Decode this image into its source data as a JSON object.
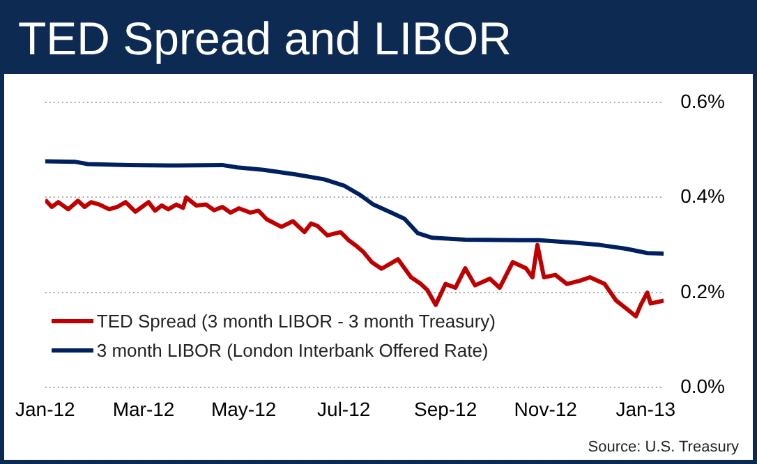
{
  "chart_data": {
    "type": "line",
    "title": "TED Spread and LIBOR",
    "annotations": [
      "Source: U.S. Treasury"
    ],
    "series": [
      {
        "name": "TED Spread (3 month LIBOR - 3 month Treasury)",
        "color": "#c00000",
        "x": [
          "2012-01-01",
          "2012-01-05",
          "2012-01-09",
          "2012-01-15",
          "2012-01-21",
          "2012-01-25",
          "2012-01-29",
          "2012-02-03",
          "2012-02-09",
          "2012-02-14",
          "2012-02-19",
          "2012-02-25",
          "2012-02-29",
          "2012-03-04",
          "2012-03-08",
          "2012-03-12",
          "2012-03-16",
          "2012-03-21",
          "2012-03-25",
          "2012-03-27",
          "2012-04-02",
          "2012-04-08",
          "2012-04-13",
          "2012-04-18",
          "2012-04-23",
          "2012-04-28",
          "2012-05-05",
          "2012-05-10",
          "2012-05-15",
          "2012-05-24",
          "2012-05-31",
          "2012-06-07",
          "2012-06-11",
          "2012-06-15",
          "2012-06-21",
          "2012-06-29",
          "2012-07-04",
          "2012-07-09",
          "2012-07-13",
          "2012-07-18",
          "2012-07-24",
          "2012-07-30",
          "2012-08-03",
          "2012-08-11",
          "2012-08-17",
          "2012-08-21",
          "2012-08-26",
          "2012-09-01",
          "2012-09-07",
          "2012-09-13",
          "2012-09-19",
          "2012-09-28",
          "2012-10-04",
          "2012-10-12",
          "2012-10-20",
          "2012-10-24",
          "2012-10-27",
          "2012-10-31",
          "2012-11-07",
          "2012-11-14",
          "2012-11-22",
          "2012-11-28",
          "2012-12-07",
          "2012-12-14",
          "2012-12-21",
          "2012-12-26",
          "2012-12-29",
          "2013-01-02",
          "2013-01-04",
          "2013-01-12"
        ],
        "values": [
          0.395,
          0.38,
          0.39,
          0.375,
          0.393,
          0.38,
          0.39,
          0.385,
          0.375,
          0.38,
          0.39,
          0.37,
          0.38,
          0.39,
          0.372,
          0.383,
          0.375,
          0.385,
          0.378,
          0.4,
          0.383,
          0.385,
          0.373,
          0.38,
          0.368,
          0.377,
          0.368,
          0.372,
          0.354,
          0.338,
          0.35,
          0.327,
          0.345,
          0.34,
          0.32,
          0.327,
          0.31,
          0.297,
          0.285,
          0.264,
          0.25,
          0.262,
          0.27,
          0.232,
          0.218,
          0.205,
          0.174,
          0.218,
          0.21,
          0.251,
          0.215,
          0.229,
          0.21,
          0.264,
          0.251,
          0.232,
          0.3,
          0.232,
          0.237,
          0.218,
          0.225,
          0.232,
          0.218,
          0.183,
          0.164,
          0.15,
          0.174,
          0.2,
          0.177,
          0.183
        ]
      },
      {
        "name": "3 month LIBOR (London Interbank Offered Rate)",
        "color": "#002060",
        "x": [
          "2012-01-01",
          "2012-01-19",
          "2012-01-27",
          "2012-02-21",
          "2012-03-16",
          "2012-04-18",
          "2012-04-27",
          "2012-05-13",
          "2012-06-02",
          "2012-06-19",
          "2012-07-01",
          "2012-07-11",
          "2012-07-19",
          "2012-07-30",
          "2012-08-07",
          "2012-08-15",
          "2012-08-24",
          "2012-09-13",
          "2012-10-16",
          "2012-10-28",
          "2012-11-18",
          "2012-12-04",
          "2012-12-20",
          "2013-01-02",
          "2013-01-12"
        ],
        "values": [
          0.476,
          0.475,
          0.47,
          0.468,
          0.467,
          0.468,
          0.463,
          0.458,
          0.448,
          0.438,
          0.425,
          0.405,
          0.385,
          0.368,
          0.355,
          0.325,
          0.315,
          0.311,
          0.31,
          0.31,
          0.305,
          0.3,
          0.292,
          0.283,
          0.282
        ]
      }
    ],
    "xlim": [
      "2012-01-01",
      "2013-01-12"
    ],
    "xticks": [
      {
        "value": "2012-01-01",
        "label": "Jan-12"
      },
      {
        "value": "2012-03-01",
        "label": "Mar-12"
      },
      {
        "value": "2012-05-01",
        "label": "May-12"
      },
      {
        "value": "2012-07-01",
        "label": "Jul-12"
      },
      {
        "value": "2012-09-01",
        "label": "Sep-12"
      },
      {
        "value": "2012-11-01",
        "label": "Nov-12"
      },
      {
        "value": "2013-01-01",
        "label": "Jan-13"
      }
    ],
    "ylim": [
      0,
      0.6
    ],
    "yticks": [
      {
        "value": 0,
        "label": "0.0%"
      },
      {
        "value": 0.2,
        "label": "0.2%"
      },
      {
        "value": 0.4,
        "label": "0.4%"
      },
      {
        "value": 0.6,
        "label": "0.6%"
      }
    ],
    "grid": "y",
    "legend": "bottom left",
    "marker": "none",
    "line_style": "solid"
  }
}
